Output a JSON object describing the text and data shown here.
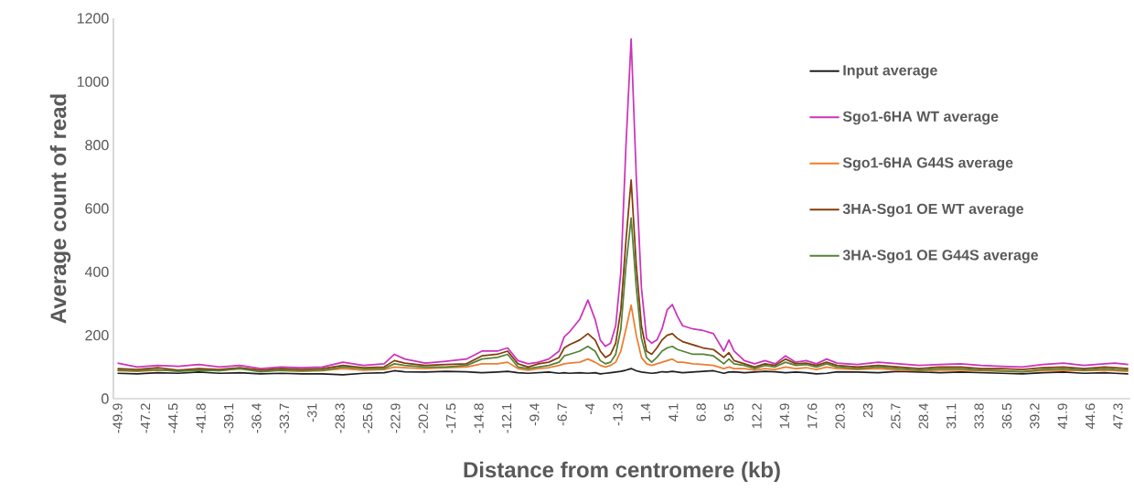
{
  "chart_data": {
    "type": "line",
    "xlabel": "Distance from centromere (kb)",
    "ylabel": "Average count of read",
    "x": [
      -49.9,
      -48,
      -46,
      -44,
      -42,
      -40,
      -38,
      -36,
      -34,
      -32,
      -30,
      -28,
      -26,
      -24,
      -23,
      -22,
      -20,
      -18,
      -16,
      -14.5,
      -13,
      -12,
      -11,
      -10,
      -9,
      -8,
      -7,
      -6.5,
      -6,
      -5,
      -4.2,
      -3.5,
      -3,
      -2.5,
      -2,
      -1.5,
      -1,
      -0.5,
      0,
      0.5,
      1,
      1.5,
      2,
      2.5,
      3,
      3.5,
      4,
      4.5,
      5,
      6,
      7,
      8,
      9,
      9.5,
      10,
      11,
      12,
      13,
      14,
      15,
      16,
      17,
      18,
      19,
      20,
      22,
      24,
      26,
      28,
      30,
      32,
      34,
      36,
      38,
      40,
      42,
      44,
      46,
      47,
      48.3
    ],
    "series": [
      {
        "name": "Input average",
        "color": "#1f1f1f",
        "values": [
          80,
          78,
          82,
          80,
          84,
          80,
          82,
          78,
          80,
          78,
          78,
          75,
          80,
          82,
          88,
          85,
          84,
          86,
          85,
          82,
          84,
          86,
          82,
          80,
          82,
          84,
          80,
          82,
          80,
          82,
          80,
          82,
          78,
          80,
          82,
          84,
          86,
          90,
          95,
          88,
          84,
          82,
          80,
          82,
          85,
          84,
          86,
          84,
          82,
          84,
          86,
          88,
          80,
          84,
          85,
          82,
          84,
          86,
          85,
          82,
          84,
          82,
          78,
          80,
          85,
          84,
          82,
          86,
          84,
          82,
          84,
          82,
          80,
          78,
          82,
          84,
          80,
          82,
          80,
          78
        ]
      },
      {
        "name": "Sgo1-6HA WT average",
        "color": "#cc33bb",
        "values": [
          112,
          100,
          105,
          102,
          108,
          100,
          105,
          95,
          100,
          98,
          100,
          115,
          105,
          110,
          140,
          125,
          112,
          118,
          125,
          150,
          150,
          160,
          120,
          110,
          115,
          125,
          150,
          195,
          210,
          250,
          311,
          250,
          185,
          165,
          175,
          230,
          400,
          800,
          1135,
          700,
          350,
          190,
          175,
          185,
          220,
          280,
          297,
          260,
          230,
          220,
          215,
          205,
          150,
          185,
          150,
          120,
          110,
          120,
          110,
          135,
          115,
          120,
          110,
          125,
          112,
          108,
          115,
          110,
          105,
          108,
          110,
          105,
          102,
          100,
          108,
          112,
          105,
          110,
          112,
          108
        ]
      },
      {
        "name": "Sgo1-6HA G44S average",
        "color": "#ed7d31",
        "values": [
          88,
          86,
          90,
          88,
          92,
          88,
          95,
          90,
          88,
          86,
          88,
          95,
          90,
          92,
          100,
          98,
          95,
          98,
          100,
          110,
          110,
          115,
          95,
          90,
          95,
          98,
          105,
          110,
          112,
          115,
          125,
          115,
          105,
          100,
          105,
          115,
          150,
          220,
          295,
          200,
          130,
          110,
          105,
          110,
          115,
          120,
          125,
          115,
          115,
          110,
          108,
          105,
          95,
          100,
          95,
          95,
          90,
          95,
          92,
          100,
          95,
          98,
          92,
          100,
          95,
          92,
          95,
          90,
          88,
          90,
          90,
          88,
          86,
          85,
          88,
          90,
          88,
          90,
          88,
          86
        ]
      },
      {
        "name": "3HA-Sgo1 OE WT average",
        "color": "#843c0c",
        "values": [
          95,
          92,
          98,
          90,
          95,
          92,
          98,
          90,
          95,
          92,
          95,
          105,
          98,
          100,
          120,
          112,
          105,
          108,
          110,
          135,
          140,
          150,
          110,
          100,
          110,
          115,
          130,
          160,
          170,
          185,
          205,
          185,
          150,
          130,
          140,
          175,
          280,
          500,
          690,
          420,
          230,
          150,
          140,
          160,
          185,
          200,
          205,
          190,
          180,
          170,
          160,
          155,
          130,
          145,
          120,
          110,
          100,
          110,
          105,
          125,
          110,
          112,
          105,
          115,
          105,
          100,
          105,
          100,
          95,
          100,
          100,
          95,
          95,
          92,
          98,
          100,
          95,
          100,
          98,
          95
        ]
      },
      {
        "name": "3HA-Sgo1 OE G44S average",
        "color": "#548235",
        "values": [
          90,
          88,
          92,
          86,
          90,
          88,
          95,
          85,
          90,
          88,
          90,
          100,
          95,
          95,
          110,
          105,
          100,
          100,
          105,
          125,
          130,
          140,
          100,
          95,
          100,
          105,
          115,
          135,
          140,
          150,
          165,
          150,
          120,
          110,
          115,
          140,
          220,
          420,
          570,
          350,
          190,
          130,
          115,
          130,
          150,
          160,
          165,
          155,
          150,
          140,
          140,
          135,
          110,
          125,
          110,
          105,
          95,
          105,
          100,
          115,
          105,
          108,
          100,
          110,
          100,
          95,
          100,
          95,
          90,
          95,
          95,
          90,
          88,
          85,
          92,
          95,
          90,
          95,
          92,
          90
        ]
      }
    ],
    "xlim": [
      -50.3,
      48.5
    ],
    "xticks": [
      -49.9,
      -47.2,
      -44.5,
      -41.8,
      -39.1,
      -36.4,
      -33.7,
      -31,
      -28.3,
      -25.6,
      -22.9,
      -20.2,
      -17.5,
      -14.8,
      -12.1,
      -9.4,
      -6.7,
      -4,
      -1.3,
      1.4,
      4.1,
      6.8,
      9.5,
      12.2,
      14.9,
      17.6,
      20.3,
      23,
      25.7,
      28.4,
      31.1,
      33.8,
      36.5,
      39.2,
      41.9,
      44.6,
      47.3
    ],
    "ylim": [
      0,
      1200
    ],
    "yticks": [
      0,
      200,
      400,
      600,
      800,
      1000,
      1200
    ],
    "legend": "top right",
    "line_style": "solid"
  }
}
